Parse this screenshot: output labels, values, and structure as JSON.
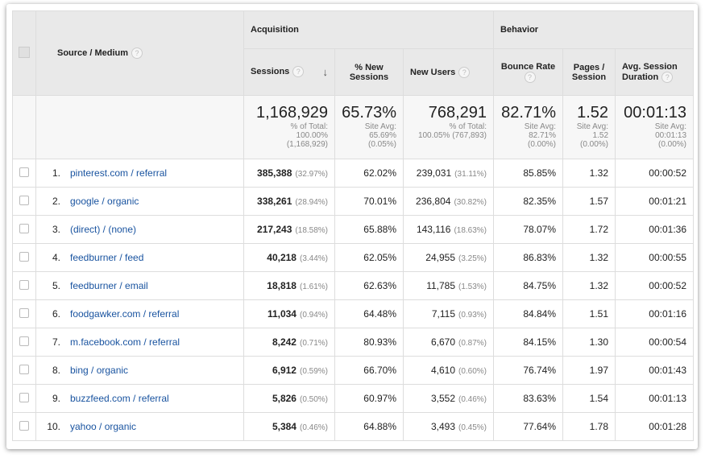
{
  "header": {
    "source_medium": "Source / Medium",
    "acquisition": "Acquisition",
    "behavior": "Behavior",
    "sessions": "Sessions",
    "pct_new_sessions": "% New Sessions",
    "new_users": "New Users",
    "bounce_rate": "Bounce Rate",
    "pages_session": "Pages / Session",
    "avg_session_duration": "Avg. Session Duration",
    "help": "?",
    "sort_arrow": "↓"
  },
  "totals": {
    "sessions": {
      "value": "1,168,929",
      "l1": "% of Total:",
      "l2": "100.00%",
      "l3": "(1,168,929)"
    },
    "pct_new": {
      "value": "65.73%",
      "l1": "Site Avg:",
      "l2": "65.69%",
      "l3": "(0.05%)"
    },
    "new_users": {
      "value": "768,291",
      "l1": "% of Total:",
      "l2": "100.05% (767,893)"
    },
    "bounce": {
      "value": "82.71%",
      "l1": "Site Avg:",
      "l2": "82.71%",
      "l3": "(0.00%)"
    },
    "pages": {
      "value": "1.52",
      "l1": "Site Avg:",
      "l2": "1.52",
      "l3": "(0.00%)"
    },
    "duration": {
      "value": "00:01:13",
      "l1": "Site Avg:",
      "l2": "00:01:13",
      "l3": "(0.00%)"
    }
  },
  "rows": [
    {
      "idx": "1.",
      "source": "pinterest.com / referral",
      "sessions": "385,388",
      "sessions_pct": "(32.97%)",
      "pct_new": "62.02%",
      "new_users": "239,031",
      "new_users_pct": "(31.11%)",
      "bounce": "85.85%",
      "pages": "1.32",
      "duration": "00:00:52"
    },
    {
      "idx": "2.",
      "source": "google / organic",
      "sessions": "338,261",
      "sessions_pct": "(28.94%)",
      "pct_new": "70.01%",
      "new_users": "236,804",
      "new_users_pct": "(30.82%)",
      "bounce": "82.35%",
      "pages": "1.57",
      "duration": "00:01:21"
    },
    {
      "idx": "3.",
      "source": "(direct) / (none)",
      "sessions": "217,243",
      "sessions_pct": "(18.58%)",
      "pct_new": "65.88%",
      "new_users": "143,116",
      "new_users_pct": "(18.63%)",
      "bounce": "78.07%",
      "pages": "1.72",
      "duration": "00:01:36"
    },
    {
      "idx": "4.",
      "source": "feedburner / feed",
      "sessions": "40,218",
      "sessions_pct": "(3.44%)",
      "pct_new": "62.05%",
      "new_users": "24,955",
      "new_users_pct": "(3.25%)",
      "bounce": "86.83%",
      "pages": "1.32",
      "duration": "00:00:55"
    },
    {
      "idx": "5.",
      "source": "feedburner / email",
      "sessions": "18,818",
      "sessions_pct": "(1.61%)",
      "pct_new": "62.63%",
      "new_users": "11,785",
      "new_users_pct": "(1.53%)",
      "bounce": "84.75%",
      "pages": "1.32",
      "duration": "00:00:52"
    },
    {
      "idx": "6.",
      "source": "foodgawker.com / referral",
      "sessions": "11,034",
      "sessions_pct": "(0.94%)",
      "pct_new": "64.48%",
      "new_users": "7,115",
      "new_users_pct": "(0.93%)",
      "bounce": "84.84%",
      "pages": "1.51",
      "duration": "00:01:16"
    },
    {
      "idx": "7.",
      "source": "m.facebook.com / referral",
      "sessions": "8,242",
      "sessions_pct": "(0.71%)",
      "pct_new": "80.93%",
      "new_users": "6,670",
      "new_users_pct": "(0.87%)",
      "bounce": "84.15%",
      "pages": "1.30",
      "duration": "00:00:54"
    },
    {
      "idx": "8.",
      "source": "bing / organic",
      "sessions": "6,912",
      "sessions_pct": "(0.59%)",
      "pct_new": "66.70%",
      "new_users": "4,610",
      "new_users_pct": "(0.60%)",
      "bounce": "76.74%",
      "pages": "1.97",
      "duration": "00:01:43"
    },
    {
      "idx": "9.",
      "source": "buzzfeed.com / referral",
      "sessions": "5,826",
      "sessions_pct": "(0.50%)",
      "pct_new": "60.97%",
      "new_users": "3,552",
      "new_users_pct": "(0.46%)",
      "bounce": "83.63%",
      "pages": "1.54",
      "duration": "00:01:13"
    },
    {
      "idx": "10.",
      "source": "yahoo / organic",
      "sessions": "5,384",
      "sessions_pct": "(0.46%)",
      "pct_new": "64.88%",
      "new_users": "3,493",
      "new_users_pct": "(0.45%)",
      "bounce": "77.64%",
      "pages": "1.78",
      "duration": "00:01:28"
    }
  ]
}
